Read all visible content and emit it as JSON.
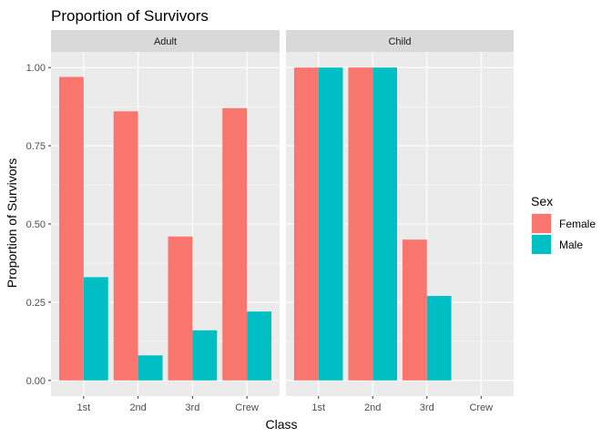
{
  "chart_data": {
    "type": "bar",
    "title": "Proportion of Survivors",
    "xlabel": "Class",
    "ylabel": "Proportion of Survivors",
    "ylim": [
      -0.05,
      1.05
    ],
    "yticks": [
      0.0,
      0.25,
      0.5,
      0.75,
      1.0
    ],
    "ytick_labels": [
      "0.00",
      "0.25",
      "0.50",
      "0.75",
      "1.00"
    ],
    "categories": [
      "1st",
      "2nd",
      "3rd",
      "Crew"
    ],
    "grid": true,
    "legend": {
      "title": "Sex",
      "placement": "right",
      "entries": [
        {
          "name": "Female",
          "color": "#F8766D"
        },
        {
          "name": "Male",
          "color": "#00BFC4"
        }
      ]
    },
    "facets": [
      {
        "label": "Adult",
        "series": [
          {
            "name": "Female",
            "values": [
              0.97,
              0.86,
              0.46,
              0.87
            ]
          },
          {
            "name": "Male",
            "values": [
              0.33,
              0.08,
              0.16,
              0.22
            ]
          }
        ]
      },
      {
        "label": "Child",
        "series": [
          {
            "name": "Female",
            "values": [
              1.0,
              1.0,
              0.45,
              null
            ]
          },
          {
            "name": "Male",
            "values": [
              1.0,
              1.0,
              0.27,
              null
            ]
          }
        ]
      }
    ]
  }
}
